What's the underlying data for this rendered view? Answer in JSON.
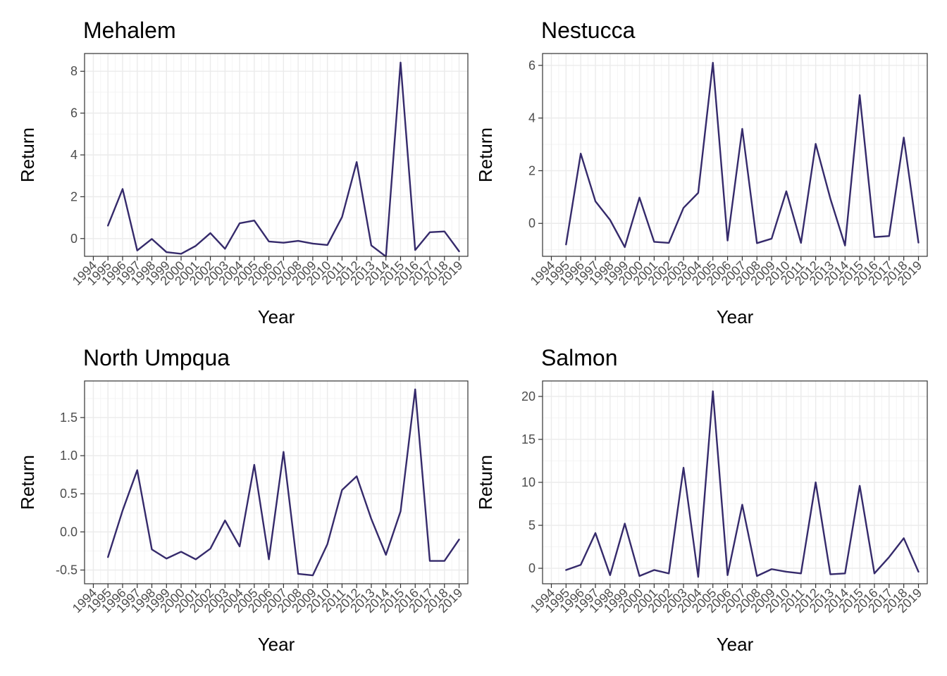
{
  "chart_data": [
    {
      "type": "line",
      "title": "Mehalem",
      "xlabel": "Year",
      "ylabel": "Return",
      "grid": true,
      "xlim": [
        1994,
        2019
      ],
      "ylim": [
        -0.85,
        8.85
      ],
      "x_ticks": [
        "1994",
        "1995",
        "1996",
        "1997",
        "1998",
        "1999",
        "2000",
        "2001",
        "2002",
        "2003",
        "2004",
        "2005",
        "2006",
        "2007",
        "2008",
        "2009",
        "2010",
        "2011",
        "2012",
        "2013",
        "2014",
        "2015",
        "2016",
        "2017",
        "2018",
        "2019"
      ],
      "y_ticks": [
        0,
        2,
        4,
        6,
        8
      ],
      "x": [
        1995,
        1996,
        1997,
        1998,
        1999,
        2000,
        2001,
        2002,
        2003,
        2004,
        2005,
        2006,
        2007,
        2008,
        2009,
        2010,
        2011,
        2012,
        2013,
        2014,
        2015,
        2016,
        2017,
        2018,
        2019
      ],
      "values": [
        0.62,
        2.37,
        -0.57,
        -0.02,
        -0.65,
        -0.73,
        -0.35,
        0.26,
        -0.49,
        0.73,
        0.86,
        -0.14,
        -0.2,
        -0.11,
        -0.24,
        -0.31,
        1.03,
        3.66,
        -0.33,
        -0.86,
        8.42,
        -0.55,
        0.3,
        0.34,
        -0.61
      ]
    },
    {
      "type": "line",
      "title": "Nestucca",
      "xlabel": "Year",
      "ylabel": "Return",
      "grid": true,
      "xlim": [
        1994,
        2019
      ],
      "ylim": [
        -1.25,
        6.45
      ],
      "x_ticks": [
        "1994",
        "1995",
        "1996",
        "1997",
        "1998",
        "1999",
        "2000",
        "2001",
        "2002",
        "2003",
        "2004",
        "2005",
        "2006",
        "2007",
        "2008",
        "2009",
        "2010",
        "2011",
        "2012",
        "2013",
        "2014",
        "2015",
        "2016",
        "2017",
        "2018",
        "2019"
      ],
      "y_ticks": [
        0,
        2,
        4,
        6
      ],
      "x": [
        1995,
        1996,
        1997,
        1998,
        1999,
        2000,
        2001,
        2002,
        2003,
        2004,
        2005,
        2006,
        2007,
        2008,
        2009,
        2010,
        2011,
        2012,
        2013,
        2014,
        2015,
        2016,
        2017,
        2018,
        2019
      ],
      "values": [
        -0.8,
        2.65,
        0.84,
        0.13,
        -0.9,
        0.98,
        -0.7,
        -0.74,
        0.59,
        1.16,
        6.1,
        -0.65,
        3.59,
        -0.75,
        -0.58,
        1.22,
        -0.74,
        3.02,
        0.94,
        -0.84,
        4.87,
        -0.52,
        -0.48,
        3.26,
        -0.73
      ]
    },
    {
      "type": "line",
      "title": "North Umpqua",
      "xlabel": "Year",
      "ylabel": "Return",
      "grid": true,
      "xlim": [
        1994,
        2019
      ],
      "ylim": [
        -0.68,
        1.98
      ],
      "x_ticks": [
        "1994",
        "1995",
        "1996",
        "1997",
        "1998",
        "1999",
        "2000",
        "2001",
        "2002",
        "2003",
        "2004",
        "2005",
        "2006",
        "2007",
        "2008",
        "2009",
        "2010",
        "2011",
        "2012",
        "2013",
        "2014",
        "2015",
        "2016",
        "2017",
        "2018",
        "2019"
      ],
      "y_ticks": [
        -0.5,
        0.0,
        0.5,
        1.0,
        1.5
      ],
      "y_tick_labels": [
        "-0.5",
        "0.0",
        "0.5",
        "1.0",
        "1.5"
      ],
      "x": [
        1995,
        1996,
        1997,
        1998,
        1999,
        2000,
        2001,
        2002,
        2003,
        2004,
        2005,
        2006,
        2007,
        2008,
        2009,
        2010,
        2011,
        2012,
        2013,
        2014,
        2015,
        2016,
        2017,
        2018,
        2019
      ],
      "values": [
        -0.33,
        0.28,
        0.81,
        -0.23,
        -0.35,
        -0.26,
        -0.36,
        -0.22,
        0.15,
        -0.19,
        0.88,
        -0.36,
        1.05,
        -0.55,
        -0.57,
        -0.16,
        0.55,
        0.73,
        0.17,
        -0.3,
        0.27,
        1.87,
        -0.38,
        -0.38,
        -0.1
      ]
    },
    {
      "type": "line",
      "title": "Salmon",
      "xlabel": "Year",
      "ylabel": "Return",
      "grid": true,
      "xlim": [
        1994,
        2019
      ],
      "ylim": [
        -1.8,
        21.8
      ],
      "x_ticks": [
        "1994",
        "1995",
        "1996",
        "1997",
        "1998",
        "1999",
        "2000",
        "2001",
        "2002",
        "2003",
        "2004",
        "2005",
        "2006",
        "2007",
        "2008",
        "2009",
        "2010",
        "2011",
        "2012",
        "2013",
        "2014",
        "2015",
        "2016",
        "2017",
        "2018",
        "2019"
      ],
      "y_ticks": [
        0,
        5,
        10,
        15,
        20
      ],
      "x": [
        1995,
        1996,
        1997,
        1998,
        1999,
        2000,
        2001,
        2002,
        2003,
        2004,
        2005,
        2006,
        2007,
        2008,
        2009,
        2010,
        2011,
        2012,
        2013,
        2014,
        2015,
        2016,
        2017,
        2018,
        2019
      ],
      "values": [
        -0.2,
        0.4,
        4.1,
        -0.8,
        5.2,
        -0.9,
        -0.2,
        -0.6,
        11.7,
        -1.0,
        20.6,
        -0.8,
        7.4,
        -0.9,
        -0.1,
        -0.4,
        -0.6,
        10.0,
        -0.7,
        -0.6,
        9.6,
        -0.6,
        1.3,
        3.5,
        -0.4
      ]
    }
  ],
  "colors": {
    "line": "#352a6b",
    "grid_major": "#ebebeb",
    "grid_minor": "#f2f2f2",
    "border": "#333333",
    "tick_text": "#4d4d4d"
  }
}
